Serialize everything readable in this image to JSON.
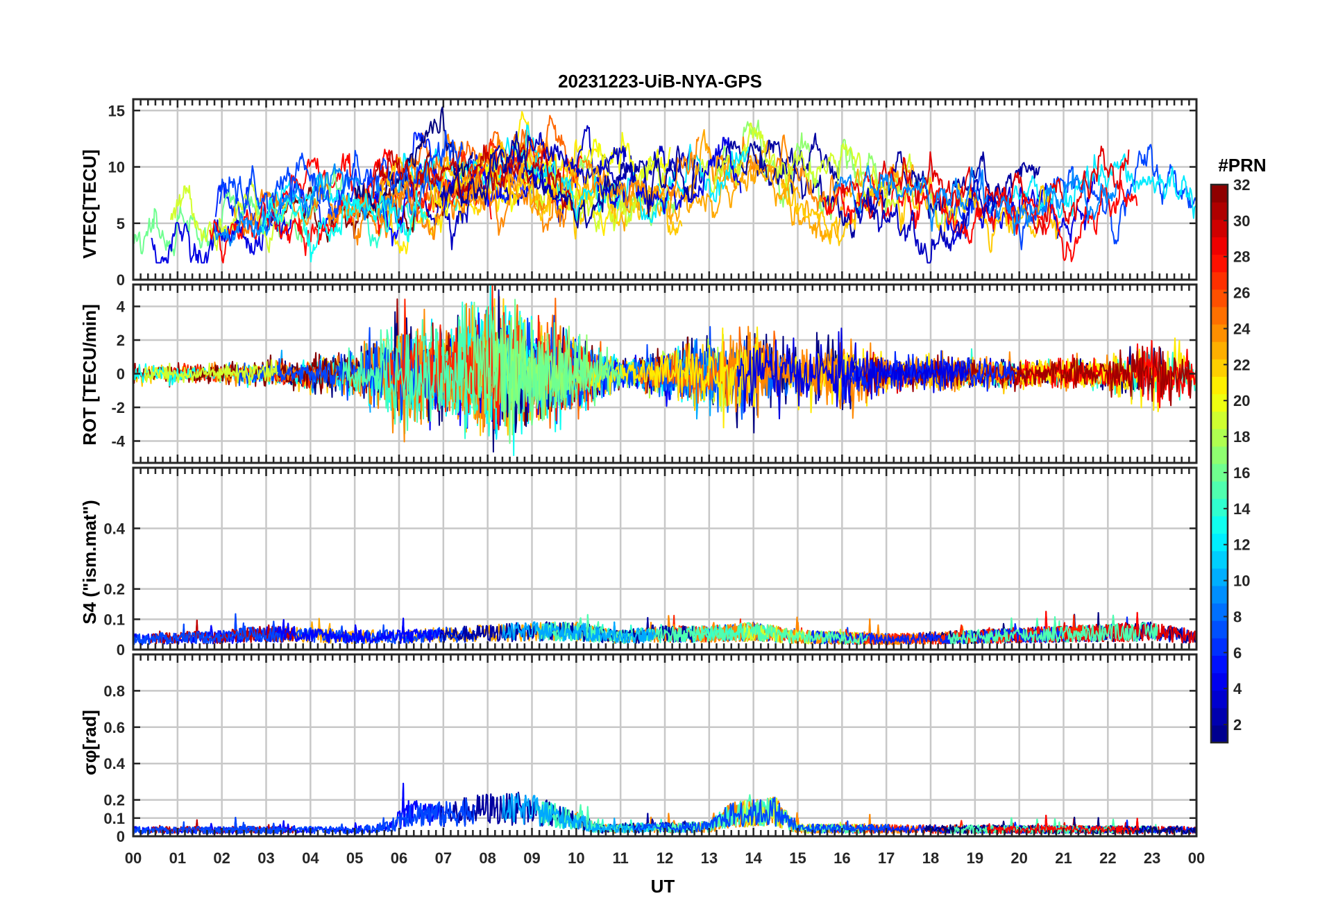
{
  "chart_data": {
    "type": "line",
    "title": "20231223-UiB-NYA-GPS",
    "xlabel": "UT",
    "x_ticks": [
      "00",
      "01",
      "02",
      "03",
      "04",
      "05",
      "06",
      "07",
      "08",
      "09",
      "10",
      "11",
      "12",
      "13",
      "14",
      "15",
      "16",
      "17",
      "18",
      "19",
      "20",
      "21",
      "22",
      "23",
      "00"
    ],
    "xlim_hours": [
      0,
      24
    ],
    "grid": true,
    "colorbar": {
      "label": "#PRN",
      "range": [
        1,
        32
      ],
      "ticks": [
        "2",
        "4",
        "6",
        "8",
        "10",
        "12",
        "14",
        "16",
        "18",
        "20",
        "22",
        "24",
        "26",
        "28",
        "30",
        "32"
      ],
      "colormap": "jet"
    },
    "panels": [
      {
        "name": "vtec",
        "ylabel": "VTEC[TECU]",
        "ylim": [
          0,
          16
        ],
        "yticks": [
          "0",
          "5",
          "10",
          "15"
        ],
        "ytick_values": [
          0,
          5,
          10,
          15
        ],
        "baseline": 6.5,
        "noise": 1.2,
        "envelope": [
          [
            0,
            4
          ],
          [
            2,
            5
          ],
          [
            4,
            6.5
          ],
          [
            6,
            7.5
          ],
          [
            8,
            9
          ],
          [
            9,
            10
          ],
          [
            10,
            8.5
          ],
          [
            12,
            8
          ],
          [
            13,
            10
          ],
          [
            14,
            11
          ],
          [
            15,
            9
          ],
          [
            16,
            8
          ],
          [
            17,
            8
          ],
          [
            18,
            7
          ],
          [
            19,
            7
          ],
          [
            20,
            7
          ],
          [
            21,
            7
          ],
          [
            22,
            7.5
          ],
          [
            23,
            9
          ],
          [
            24,
            8
          ]
        ]
      },
      {
        "name": "rot",
        "ylabel": "ROT [TECU/min]",
        "ylim": [
          -5.3,
          5.3
        ],
        "yticks": [
          "-4",
          "-2",
          "0",
          "2",
          "4"
        ],
        "ytick_values": [
          -4,
          -2,
          0,
          2,
          4
        ],
        "baseline": 0,
        "amplitude": [
          [
            0,
            0.5
          ],
          [
            3,
            0.5
          ],
          [
            5,
            1.0
          ],
          [
            6,
            2.5
          ],
          [
            7,
            2.0
          ],
          [
            8,
            3.5
          ],
          [
            9,
            2.5
          ],
          [
            10,
            1.8
          ],
          [
            11,
            0.7
          ],
          [
            12,
            1.0
          ],
          [
            13,
            1.8
          ],
          [
            14,
            2.2
          ],
          [
            15,
            1.4
          ],
          [
            16,
            1.8
          ],
          [
            17,
            0.8
          ],
          [
            18,
            0.8
          ],
          [
            20,
            0.6
          ],
          [
            22,
            0.8
          ],
          [
            23,
            1.8
          ],
          [
            24,
            1.0
          ]
        ]
      },
      {
        "name": "s4",
        "ylabel": "S4 (\"ism.mat\")",
        "ylim": [
          0,
          0.6
        ],
        "yticks": [
          "0",
          "0.1",
          "0.2",
          "0.4"
        ],
        "ytick_values": [
          0,
          0.1,
          0.2,
          0.4
        ],
        "level": [
          [
            0,
            0.04
          ],
          [
            2,
            0.05
          ],
          [
            3,
            0.06
          ],
          [
            5,
            0.05
          ],
          [
            6,
            0.05
          ],
          [
            9,
            0.07
          ],
          [
            10,
            0.07
          ],
          [
            11,
            0.05
          ],
          [
            12,
            0.06
          ],
          [
            13,
            0.06
          ],
          [
            14,
            0.07
          ],
          [
            15,
            0.05
          ],
          [
            17,
            0.04
          ],
          [
            19,
            0.05
          ],
          [
            21,
            0.06
          ],
          [
            23,
            0.07
          ],
          [
            24,
            0.05
          ]
        ]
      },
      {
        "name": "sigma_phi",
        "ylabel": "σφ[rad]",
        "ylim": [
          0,
          1
        ],
        "yticks": [
          "0",
          "0.1",
          "0.2",
          "0.4",
          "0.6",
          "0.8"
        ],
        "ytick_values": [
          0,
          0.1,
          0.2,
          0.4,
          0.6,
          0.8
        ],
        "level": [
          [
            0,
            0.04
          ],
          [
            5,
            0.04
          ],
          [
            5.8,
            0.06
          ],
          [
            6.2,
            0.15
          ],
          [
            7,
            0.14
          ],
          [
            8,
            0.18
          ],
          [
            9,
            0.17
          ],
          [
            10,
            0.1
          ],
          [
            10.5,
            0.05
          ],
          [
            13,
            0.06
          ],
          [
            13.5,
            0.14
          ],
          [
            14.5,
            0.16
          ],
          [
            15,
            0.05
          ],
          [
            24,
            0.04
          ]
        ]
      }
    ]
  }
}
